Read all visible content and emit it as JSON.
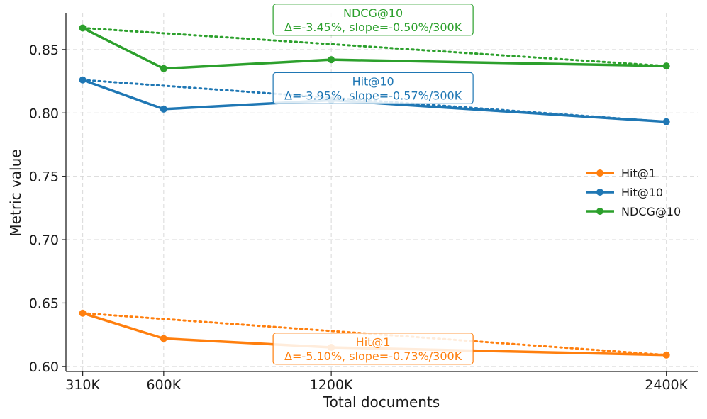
{
  "chart_data": {
    "type": "line",
    "title": "",
    "xlabel": "Total documents",
    "ylabel": "Metric value",
    "x": [
      310,
      600,
      1200,
      2400
    ],
    "x_tick_labels": [
      "310K",
      "600K",
      "1200K",
      "2400K"
    ],
    "xlim": [
      250,
      2515
    ],
    "ylim": [
      0.596,
      0.879
    ],
    "y_ticks": [
      0.6,
      0.65,
      0.7,
      0.75,
      0.8,
      0.85
    ],
    "y_tick_labels": [
      "0.60",
      "0.65",
      "0.70",
      "0.75",
      "0.80",
      "0.85"
    ],
    "grid": true,
    "legend_position": "center-right",
    "series": [
      {
        "name": "Hit@1",
        "color": "#ff7f0e",
        "values": [
          0.642,
          0.622,
          0.615,
          0.609
        ],
        "trend": [
          0.642,
          0.609
        ],
        "annotation_title": "Hit@1",
        "annotation_text": "Δ=-5.10%, slope=-0.73%/300K",
        "annotation_anchor": [
          1200,
          0.614
        ]
      },
      {
        "name": "Hit@10",
        "color": "#1f77b4",
        "values": [
          0.826,
          0.803,
          0.81,
          0.793
        ],
        "trend": [
          0.826,
          0.793
        ],
        "annotation_title": "Hit@10",
        "annotation_text": "Δ=-3.95%, slope=-0.57%/300K",
        "annotation_anchor": [
          1200,
          0.8195
        ]
      },
      {
        "name": "NDCG@10",
        "color": "#2ca02c",
        "values": [
          0.867,
          0.835,
          0.842,
          0.837
        ],
        "trend": [
          0.867,
          0.837
        ],
        "annotation_title": "NDCG@10",
        "annotation_text": "Δ=-3.45%, slope=-0.50%/300K",
        "annotation_anchor": [
          1200,
          0.8735
        ]
      }
    ]
  }
}
